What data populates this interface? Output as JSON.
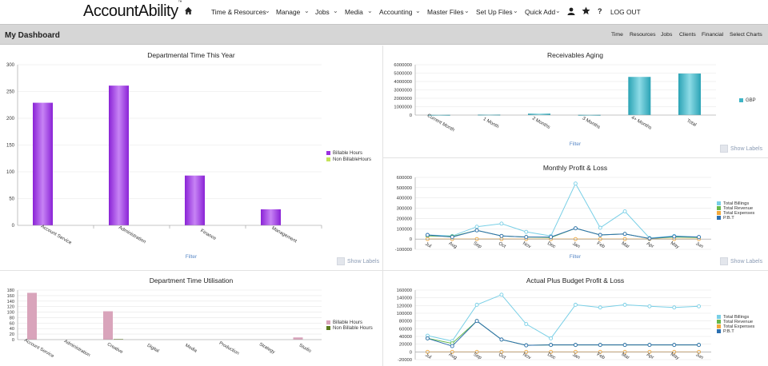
{
  "app": {
    "logo_text": "AccountAbility",
    "logo_tm": "™"
  },
  "nav": {
    "items": [
      "Time & Resources",
      "Manage",
      "Jobs",
      "Media",
      "Accounting",
      "Master Files",
      "Set Up Files",
      "Quick Add"
    ],
    "logout": "LOG OUT",
    "help": "?"
  },
  "dashboard": {
    "title": "My Dashboard",
    "links": [
      "Time",
      "Resources",
      "Jobs",
      "Clients",
      "Financial",
      "Select Charts"
    ]
  },
  "ui": {
    "filter": "Filter",
    "show_labels": "Show Labels"
  },
  "colors": {
    "purple": "#9b30e0",
    "lime": "#c4e35a",
    "teal": "#3fb5c6",
    "pink": "#d9a4bb",
    "olive": "#5b7a1e",
    "lightblue": "#79cfe6",
    "green": "#66b94a",
    "orange": "#f2a93b",
    "darkblue": "#2c6fb0"
  },
  "chart_data": [
    {
      "id": "dept-time",
      "type": "bar",
      "title": "Departmental Time This Year",
      "categories": [
        "Account Service",
        "Administration",
        "Finance",
        "Management"
      ],
      "series": [
        {
          "name": "Billable Hours",
          "values": [
            229,
            261,
            93,
            30
          ]
        },
        {
          "name": "Non BillableHours",
          "values": [
            0,
            0,
            0,
            0
          ]
        }
      ],
      "ylim": [
        0,
        300
      ],
      "yticks": [
        0,
        50,
        100,
        150,
        200,
        250,
        300
      ]
    },
    {
      "id": "receivables",
      "type": "bar",
      "title": "Receivables Aging",
      "categories": [
        "Current Month",
        "1 Month",
        "2 Months",
        "3 Months",
        "4+ Months",
        "Total"
      ],
      "series": [
        {
          "name": "GBP",
          "values": [
            40000,
            60000,
            170000,
            40000,
            4550000,
            4950000
          ]
        }
      ],
      "ylim": [
        0,
        6000000
      ],
      "yticks": [
        0,
        1000000,
        2000000,
        3000000,
        4000000,
        5000000,
        6000000
      ]
    },
    {
      "id": "monthly-pl",
      "type": "line",
      "title": "Monthly Profit & Loss",
      "categories": [
        "Jul",
        "Aug",
        "Sep",
        "Oct",
        "Nov",
        "Dec",
        "Jan",
        "Feb",
        "Mar",
        "Apr",
        "May",
        "Jun"
      ],
      "series": [
        {
          "name": "Total Billings",
          "values": [
            40000,
            30000,
            120000,
            150000,
            70000,
            30000,
            540000,
            110000,
            270000,
            10000,
            30000,
            20000
          ]
        },
        {
          "name": "Total Revenue",
          "values": [
            30000,
            25000,
            85000,
            30000,
            20000,
            15000,
            105000,
            40000,
            50000,
            5000,
            20000,
            15000
          ]
        },
        {
          "name": "Total Expenses",
          "values": [
            0,
            0,
            0,
            0,
            0,
            0,
            0,
            0,
            0,
            0,
            0,
            0
          ]
        },
        {
          "name": "P.B.T",
          "values": [
            40000,
            20000,
            85000,
            30000,
            20000,
            20000,
            105000,
            40000,
            50000,
            5000,
            25000,
            20000
          ]
        }
      ],
      "ylim": [
        -100000,
        600000
      ],
      "yticks": [
        -100000,
        0,
        100000,
        200000,
        300000,
        400000,
        500000,
        600000
      ]
    },
    {
      "id": "dept-util",
      "type": "bar",
      "title": "Department Time Utilisation",
      "categories": [
        "Account Service",
        "Administration",
        "Creative",
        "Digital",
        "Media",
        "Production",
        "Strategy",
        "Studio"
      ],
      "series": [
        {
          "name": "Billable Hours",
          "values": [
            170,
            0,
            103,
            0,
            0,
            0,
            0,
            8
          ]
        },
        {
          "name": "Non Billable Hours",
          "values": [
            0,
            0,
            2,
            0,
            0,
            0,
            0,
            0
          ]
        }
      ],
      "ylim": [
        0,
        180
      ],
      "yticks": [
        0,
        20,
        40,
        60,
        80,
        100,
        120,
        140,
        160,
        180
      ]
    },
    {
      "id": "budget-pl",
      "type": "line",
      "title": "Actual Plus Budget Profit & Loss",
      "categories": [
        "Jul",
        "Aug",
        "Sep",
        "Oct",
        "Nov",
        "Dec",
        "Jan",
        "Feb",
        "Mar",
        "Apr",
        "May",
        "Jun"
      ],
      "series": [
        {
          "name": "Total Billings",
          "values": [
            42000,
            28000,
            122000,
            148000,
            72000,
            35000,
            122000,
            115000,
            122000,
            118000,
            115000,
            118000
          ]
        },
        {
          "name": "Total Revenue",
          "values": [
            35000,
            22000,
            80000,
            32000,
            17000,
            18000,
            18000,
            18000,
            18000,
            18000,
            18000,
            18000
          ]
        },
        {
          "name": "Total Expenses",
          "values": [
            0,
            0,
            0,
            0,
            0,
            0,
            0,
            0,
            0,
            0,
            0,
            0
          ]
        },
        {
          "name": "P.B.T",
          "values": [
            35000,
            15000,
            80000,
            32000,
            17000,
            18000,
            18000,
            18000,
            18000,
            18000,
            18000,
            18000
          ]
        }
      ],
      "ylim": [
        -20000,
        160000
      ],
      "yticks": [
        -20000,
        0,
        20000,
        40000,
        60000,
        80000,
        100000,
        120000,
        140000,
        160000
      ]
    }
  ]
}
